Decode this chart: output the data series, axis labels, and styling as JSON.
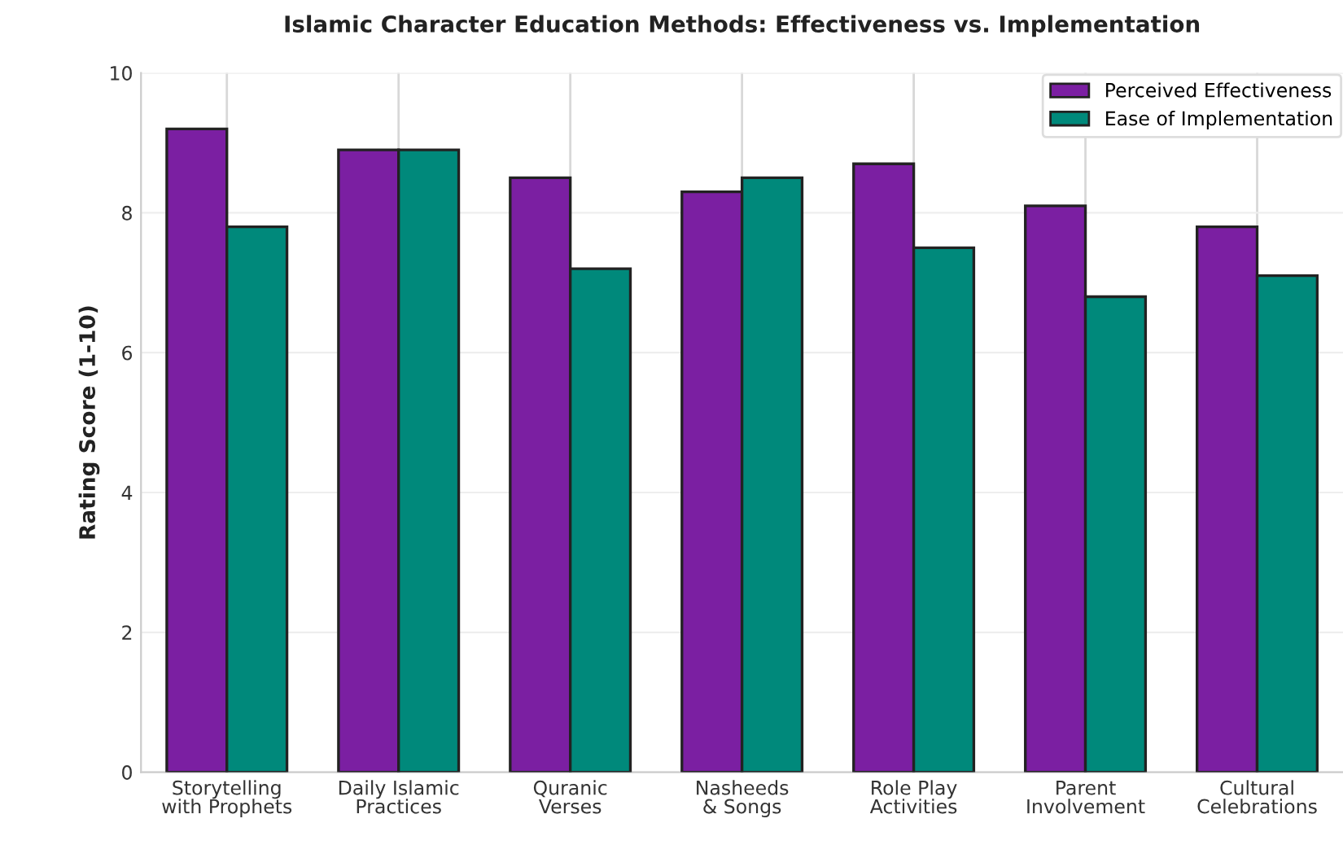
{
  "chart_data": {
    "type": "bar",
    "title": "Islamic Character Education Methods: Effectiveness vs. Implementation",
    "ylabel": "Rating Score (1-10)",
    "categories": [
      "Storytelling\nwith Prophets",
      "Daily Islamic\nPractices",
      "Quranic\nVerses",
      "Nasheeds\n& Songs",
      "Role Play\nActivities",
      "Parent\nInvolvement",
      "Cultural\nCelebrations"
    ],
    "series": [
      {
        "name": "Perceived Effectiveness",
        "color": "#7b1fa2",
        "values": [
          9.2,
          8.9,
          8.5,
          8.3,
          8.7,
          8.1,
          7.8
        ]
      },
      {
        "name": "Ease of Implementation",
        "color": "#00897b",
        "values": [
          7.8,
          8.9,
          7.2,
          8.5,
          7.5,
          6.8,
          7.1
        ]
      }
    ],
    "ylim": [
      0,
      10
    ],
    "yticks": [
      0,
      2,
      4,
      6,
      8,
      10
    ],
    "grid": true,
    "legend": "top right"
  }
}
